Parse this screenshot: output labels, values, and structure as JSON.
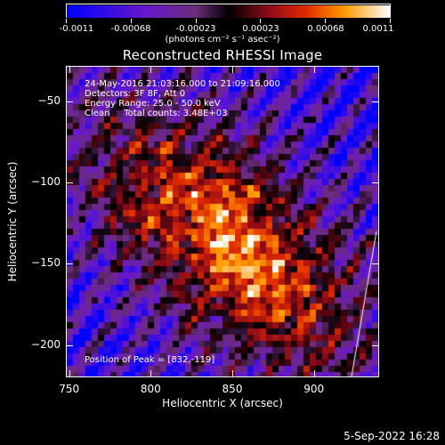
{
  "colorbar": {
    "ticks": [
      "-0.0011",
      "-0.00068",
      "-0.00023",
      "0.00023",
      "0.00068",
      "0.0011"
    ],
    "unit": "(photons cm⁻² s⁻¹ asec⁻²)",
    "min": -0.0011,
    "max": 0.0011
  },
  "chart_data": {
    "type": "heatmap",
    "title": "Reconstructed RHESSI Image",
    "xlabel": "Heliocentric X (arcsec)",
    "ylabel": "Heliocentric Y (arcsec)",
    "xlim": [
      748,
      940
    ],
    "ylim": [
      -220,
      -28
    ],
    "xticks": [
      750,
      800,
      850,
      900
    ],
    "yticks": [
      -50,
      -100,
      -150,
      -200
    ],
    "xtick_labels": [
      "750",
      "800",
      "850",
      "900"
    ],
    "ytick_labels": [
      "−50",
      "−100",
      "−150",
      "−200"
    ],
    "peak": [
      832,
      -119
    ],
    "annotations": [
      "24-May-2016 21:03:16.000 to 21:09:16.000",
      "Detectors: 3F 8F, Att 0",
      "Energy Range: 25.0 - 50.0 keV",
      "Clean     Total counts: 3.48E+03"
    ],
    "peak_text": "Position of Peak = [832,-119]"
  },
  "footer": {
    "timestamp": "5-Sep-2022 16:28"
  }
}
